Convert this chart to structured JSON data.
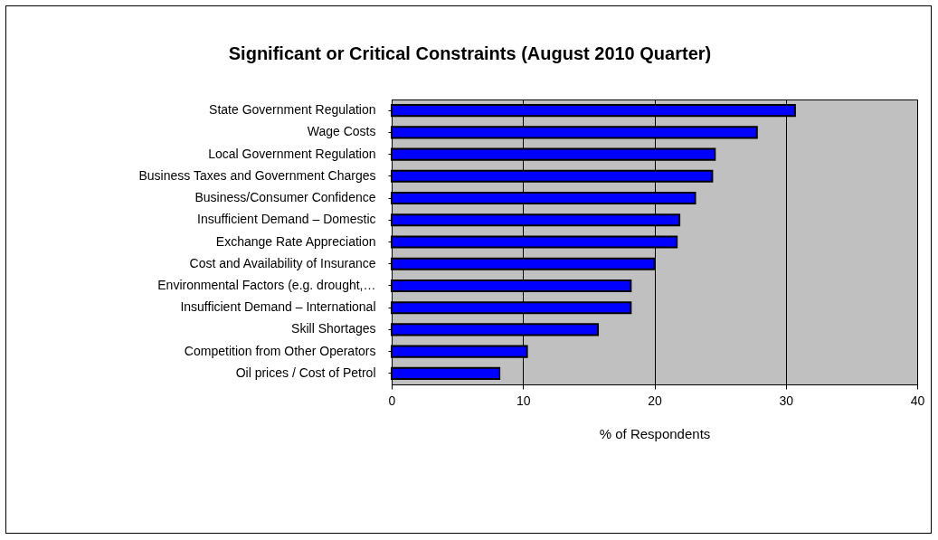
{
  "chart_data": {
    "type": "bar",
    "orientation": "horizontal",
    "title": "Significant or Critical Constraints (August 2010 Quarter)",
    "xlabel": "% of Respondents",
    "categories": [
      "State Government Regulation",
      "Wage Costs",
      "Local Government Regulation",
      "Business Taxes and Government Charges",
      "Business/Consumer Confidence",
      "Insufficient Demand – Domestic",
      "Exchange Rate Appreciation",
      "Cost and Availability of Insurance",
      "Environmental Factors (e.g. drought,…",
      "Insufficient Demand – International",
      "Skill Shortages",
      "Competition from Other Operators",
      "Oil prices / Cost of Petrol"
    ],
    "values": [
      30.7,
      27.8,
      24.6,
      24.4,
      23.1,
      21.9,
      21.7,
      20.0,
      18.2,
      18.2,
      15.7,
      10.3,
      8.2
    ],
    "color": "#0000ff",
    "xlim": [
      0,
      40
    ],
    "xticks": [
      0,
      10,
      20,
      30,
      40
    ],
    "grid": "x"
  }
}
